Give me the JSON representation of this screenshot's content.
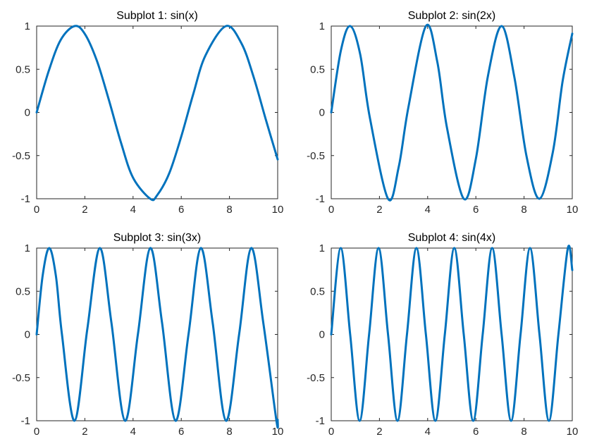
{
  "chart_data": [
    {
      "type": "line",
      "title": "Subplot 1: sin(x)",
      "xlabel": "",
      "ylabel": "",
      "xlim": [
        0,
        10
      ],
      "ylim": [
        -1,
        1
      ],
      "xticks": [
        0,
        2,
        4,
        6,
        8,
        10
      ],
      "xtick_labels": [
        "0",
        "2",
        "4",
        "6",
        "8",
        "10"
      ],
      "yticks": [
        -1,
        -0.5,
        0,
        0.5,
        1
      ],
      "ytick_labels": [
        "-1",
        "-0.5",
        "0",
        "0.5",
        "1"
      ],
      "grid": false,
      "series": [
        {
          "color": "#0072BD",
          "x": [
            0,
            0.5,
            1,
            1.5708,
            2,
            2.5,
            3,
            3.5,
            4,
            4.7124,
            5,
            5.5,
            6,
            6.5,
            7,
            7.854,
            8.5,
            9,
            9.5,
            10
          ],
          "y": [
            0,
            0.479,
            0.841,
            1,
            0.909,
            0.598,
            0.141,
            -0.351,
            -0.757,
            -1,
            -0.959,
            -0.706,
            -0.279,
            0.215,
            0.657,
            1,
            0.798,
            0.412,
            -0.075,
            -0.544
          ]
        }
      ]
    },
    {
      "type": "line",
      "title": "Subplot 2: sin(2x)",
      "xlabel": "",
      "ylabel": "",
      "xlim": [
        0,
        10
      ],
      "ylim": [
        -1,
        1
      ],
      "xticks": [
        0,
        2,
        4,
        6,
        8,
        10
      ],
      "xtick_labels": [
        "0",
        "2",
        "4",
        "6",
        "8",
        "10"
      ],
      "yticks": [
        -1,
        -0.5,
        0,
        0.5,
        1
      ],
      "ytick_labels": [
        "-1",
        "-0.5",
        "0",
        "0.5",
        "1"
      ],
      "grid": false,
      "series": [
        {
          "color": "#0072BD",
          "x": [
            0,
            0.4,
            0.7854,
            1.2,
            1.6,
            2.3562,
            2.8,
            3.2,
            3.927,
            4.4,
            4.8,
            5.4978,
            6,
            6.5,
            7.0686,
            7.6,
            8.1,
            8.6394,
            9.2,
            9.6,
            10
          ],
          "y": [
            0,
            0.717,
            1,
            0.675,
            -0.058,
            -1,
            -0.631,
            0.058,
            1,
            0.586,
            -0.175,
            -1,
            -0.537,
            0.42,
            1,
            0.405,
            -0.505,
            -1,
            -0.451,
            0.362,
            0.913
          ]
        }
      ]
    },
    {
      "type": "line",
      "title": "Subplot 3: sin(3x)",
      "xlabel": "",
      "ylabel": "",
      "xlim": [
        0,
        10
      ],
      "ylim": [
        -1,
        1
      ],
      "xticks": [
        0,
        2,
        4,
        6,
        8,
        10
      ],
      "xtick_labels": [
        "0",
        "2",
        "4",
        "6",
        "8",
        "10"
      ],
      "yticks": [
        -1,
        -0.5,
        0,
        0.5,
        1
      ],
      "ytick_labels": [
        "-1",
        "-0.5",
        "0",
        "0.5",
        "1"
      ],
      "grid": false,
      "series": [
        {
          "color": "#0072BD",
          "x": [
            0,
            0.25,
            0.5236,
            0.8,
            1.05,
            1.5708,
            2.1,
            2.618,
            3.1,
            3.665,
            4.2,
            4.7124,
            5.2,
            5.7596,
            6.3,
            6.8068,
            7.3,
            7.854,
            8.4,
            8.9012,
            9.4,
            9.9484,
            10
          ],
          "y": [
            0,
            0.682,
            1,
            0.675,
            0.0,
            -1,
            0.058,
            1,
            0.141,
            -1,
            0.0,
            1,
            0.141,
            -1,
            0.0,
            1,
            0.141,
            -1,
            0.0,
            1,
            0.141,
            -1,
            -0.988
          ]
        }
      ]
    },
    {
      "type": "line",
      "title": "Subplot 4: sin(4x)",
      "xlabel": "",
      "ylabel": "",
      "xlim": [
        0,
        10
      ],
      "ylim": [
        -1,
        1
      ],
      "xticks": [
        0,
        2,
        4,
        6,
        8,
        10
      ],
      "xtick_labels": [
        "0",
        "2",
        "4",
        "6",
        "8",
        "10"
      ],
      "yticks": [
        -1,
        -0.5,
        0,
        0.5,
        1
      ],
      "ytick_labels": [
        "-1",
        "-0.5",
        "0",
        "0.5",
        "1"
      ],
      "grid": false,
      "series": [
        {
          "color": "#0072BD",
          "x": [
            0,
            0.3927,
            0.7854,
            1.1781,
            1.5708,
            1.9635,
            2.3562,
            2.7489,
            3.1416,
            3.5343,
            3.927,
            4.3197,
            4.7124,
            5.1051,
            5.4978,
            5.8905,
            6.2832,
            6.6759,
            7.0686,
            7.4613,
            7.854,
            8.2467,
            8.6394,
            9.0321,
            9.4248,
            9.8175,
            10
          ],
          "y": [
            0,
            1,
            0,
            -1,
            0,
            1,
            0,
            -1,
            0,
            1,
            0,
            -1,
            0,
            1,
            0,
            -1,
            0,
            1,
            0,
            -1,
            0,
            1,
            0,
            -1,
            0,
            1,
            0.745
          ]
        }
      ]
    }
  ]
}
